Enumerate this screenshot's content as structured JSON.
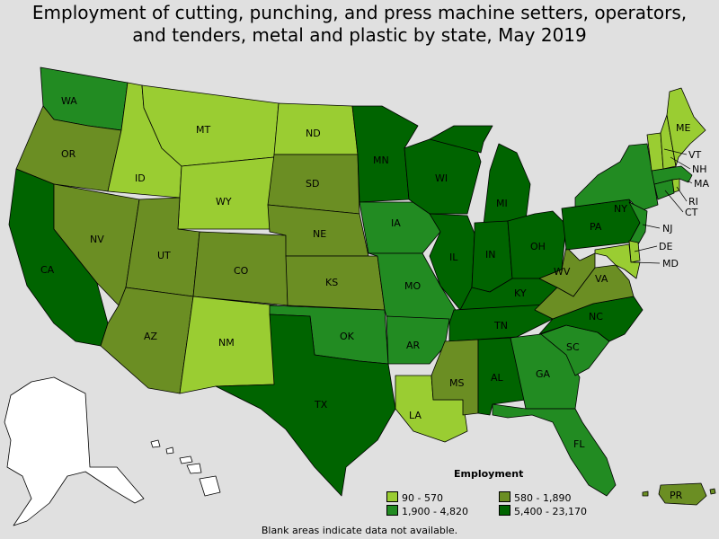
{
  "title": {
    "line1": "Employment of cutting, punching, and press machine setters, operators,",
    "line2": "and tenders, metal and plastic by state, May 2019"
  },
  "colors": {
    "c1": "#9acd32",
    "c2": "#6b8e23",
    "c3": "#228b22",
    "c4": "#006400",
    "na": "#ffffff",
    "background": "#e0e0e0"
  },
  "legend": {
    "title": "Employment",
    "items": [
      {
        "label": "90 - 570",
        "class": "c1"
      },
      {
        "label": "580 - 1,890",
        "class": "c2"
      },
      {
        "label": "1,900 - 4,820",
        "class": "c3"
      },
      {
        "label": "5,400 - 23,170",
        "class": "c4"
      }
    ]
  },
  "footnote": "Blank areas indicate data not available.",
  "states": [
    {
      "abbr": "WA",
      "class": "c3"
    },
    {
      "abbr": "OR",
      "class": "c2"
    },
    {
      "abbr": "CA",
      "class": "c4"
    },
    {
      "abbr": "ID",
      "class": "c1"
    },
    {
      "abbr": "NV",
      "class": "c2"
    },
    {
      "abbr": "MT",
      "class": "c1"
    },
    {
      "abbr": "WY",
      "class": "c1"
    },
    {
      "abbr": "UT",
      "class": "c2"
    },
    {
      "abbr": "AZ",
      "class": "c2"
    },
    {
      "abbr": "CO",
      "class": "c2"
    },
    {
      "abbr": "NM",
      "class": "c1"
    },
    {
      "abbr": "ND",
      "class": "c1"
    },
    {
      "abbr": "SD",
      "class": "c2"
    },
    {
      "abbr": "NE",
      "class": "c2"
    },
    {
      "abbr": "KS",
      "class": "c2"
    },
    {
      "abbr": "OK",
      "class": "c3"
    },
    {
      "abbr": "TX",
      "class": "c4"
    },
    {
      "abbr": "MN",
      "class": "c4"
    },
    {
      "abbr": "IA",
      "class": "c3"
    },
    {
      "abbr": "MO",
      "class": "c3"
    },
    {
      "abbr": "AR",
      "class": "c3"
    },
    {
      "abbr": "LA",
      "class": "c1"
    },
    {
      "abbr": "WI",
      "class": "c4"
    },
    {
      "abbr": "IL",
      "class": "c4"
    },
    {
      "abbr": "MI",
      "class": "c4"
    },
    {
      "abbr": "IN",
      "class": "c4"
    },
    {
      "abbr": "OH",
      "class": "c4"
    },
    {
      "abbr": "KY",
      "class": "c4"
    },
    {
      "abbr": "TN",
      "class": "c4"
    },
    {
      "abbr": "MS",
      "class": "c2"
    },
    {
      "abbr": "AL",
      "class": "c4"
    },
    {
      "abbr": "GA",
      "class": "c3"
    },
    {
      "abbr": "FL",
      "class": "c3"
    },
    {
      "abbr": "SC",
      "class": "c3"
    },
    {
      "abbr": "NC",
      "class": "c4"
    },
    {
      "abbr": "VA",
      "class": "c2"
    },
    {
      "abbr": "WV",
      "class": "c2"
    },
    {
      "abbr": "PA",
      "class": "c4"
    },
    {
      "abbr": "NY",
      "class": "c3"
    },
    {
      "abbr": "NJ",
      "class": "c3"
    },
    {
      "abbr": "DE",
      "class": "c1"
    },
    {
      "abbr": "MD",
      "class": "c1"
    },
    {
      "abbr": "CT",
      "class": "c3"
    },
    {
      "abbr": "RI",
      "class": "c1"
    },
    {
      "abbr": "MA",
      "class": "c3"
    },
    {
      "abbr": "VT",
      "class": "c1"
    },
    {
      "abbr": "NH",
      "class": "c1"
    },
    {
      "abbr": "ME",
      "class": "c1"
    },
    {
      "abbr": "PR",
      "class": "c2"
    },
    {
      "abbr": "AK",
      "class": "na"
    },
    {
      "abbr": "HI",
      "class": "na"
    }
  ]
}
